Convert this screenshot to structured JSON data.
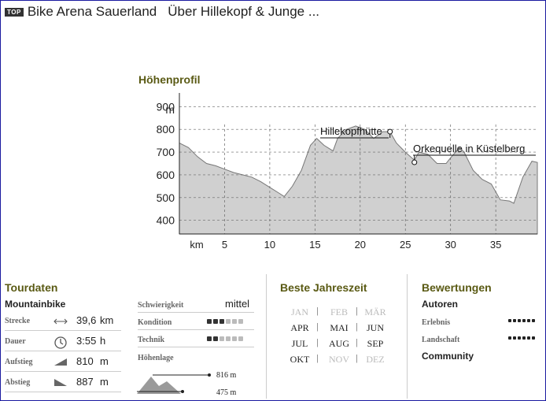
{
  "header": {
    "badge": "TOP",
    "region": "Bike Arena Sauerland",
    "tour_title": "Über Hillekopf & Junge ..."
  },
  "profile": {
    "title": "Höhenprofil",
    "y_unit": "m",
    "x_unit": "km",
    "markers": [
      {
        "label": "Hillekopfhütte",
        "km": 23.3,
        "elev": 790
      },
      {
        "label": "Orkequelle in Küstelberg",
        "km": 26,
        "elev": 655
      }
    ]
  },
  "chart_data": {
    "type": "area",
    "title": "Höhenprofil",
    "xlabel": "km",
    "ylabel": "m",
    "xlim": [
      0,
      39.6
    ],
    "ylim": [
      340,
      960
    ],
    "xticks": [
      5,
      10,
      15,
      20,
      25,
      30,
      35
    ],
    "yticks": [
      400,
      500,
      600,
      700,
      800,
      900
    ],
    "grid": "horizontal dashed",
    "x": [
      0,
      1,
      2,
      3,
      4,
      5,
      6,
      7,
      8,
      9,
      10,
      11,
      11.6,
      12.5,
      13.5,
      14.5,
      15.2,
      16,
      17,
      17.5,
      18.5,
      19.5,
      20.5,
      21.5,
      22.5,
      23.3,
      24,
      25,
      26,
      26.5,
      27.5,
      28.5,
      29.5,
      30,
      31,
      31.5,
      32.5,
      33.5,
      34.5,
      35.5,
      36.5,
      37,
      38,
      39,
      39.6
    ],
    "y": [
      740,
      720,
      680,
      650,
      640,
      625,
      610,
      600,
      590,
      570,
      545,
      520,
      505,
      550,
      620,
      730,
      760,
      730,
      705,
      760,
      800,
      815,
      800,
      760,
      790,
      790,
      740,
      700,
      665,
      700,
      690,
      650,
      650,
      675,
      720,
      700,
      620,
      580,
      560,
      490,
      485,
      475,
      590,
      660,
      655
    ]
  },
  "tourdaten": {
    "title": "Tourdaten",
    "subtitle": "Mountainbike",
    "rows": [
      {
        "label": "Strecke",
        "value": "39,6",
        "unit": "km"
      },
      {
        "label": "Dauer",
        "value": "3:55",
        "unit": "h"
      },
      {
        "label": "Aufstieg",
        "value": "810",
        "unit": "m"
      },
      {
        "label": "Abstieg",
        "value": "887",
        "unit": "m"
      }
    ]
  },
  "difficulty": {
    "schwierigkeit_label": "Schwierigkeit",
    "schwierigkeit_value": "mittel",
    "kondition_label": "Kondition",
    "kondition_level": 3,
    "technik_label": "Technik",
    "technik_level": 2,
    "max_level": 6,
    "hoehenlage_label": "Höhenlage",
    "max_elev": "816 m",
    "min_elev": "475 m"
  },
  "season": {
    "title": "Beste Jahreszeit",
    "months": [
      {
        "name": "JAN",
        "active": false
      },
      {
        "name": "FEB",
        "active": false
      },
      {
        "name": "MÄR",
        "active": false
      },
      {
        "name": "APR",
        "active": true
      },
      {
        "name": "MAI",
        "active": true
      },
      {
        "name": "JUN",
        "active": true
      },
      {
        "name": "JUL",
        "active": true
      },
      {
        "name": "AUG",
        "active": true
      },
      {
        "name": "SEP",
        "active": true
      },
      {
        "name": "OKT",
        "active": true
      },
      {
        "name": "NOV",
        "active": false
      },
      {
        "name": "DEZ",
        "active": false
      }
    ]
  },
  "ratings": {
    "title": "Bewertungen",
    "authors_label": "Autoren",
    "erlebnis_label": "Erlebnis",
    "erlebnis_level": 6,
    "landschaft_label": "Landschaft",
    "landschaft_level": 6,
    "community_label": "Community"
  },
  "colors": {
    "accent": "#5a5a14",
    "frame": "#1a1aa0",
    "dot_on": "#333333",
    "dot_off": "#bbbbbb",
    "area_fill": "#d0d0d0"
  }
}
